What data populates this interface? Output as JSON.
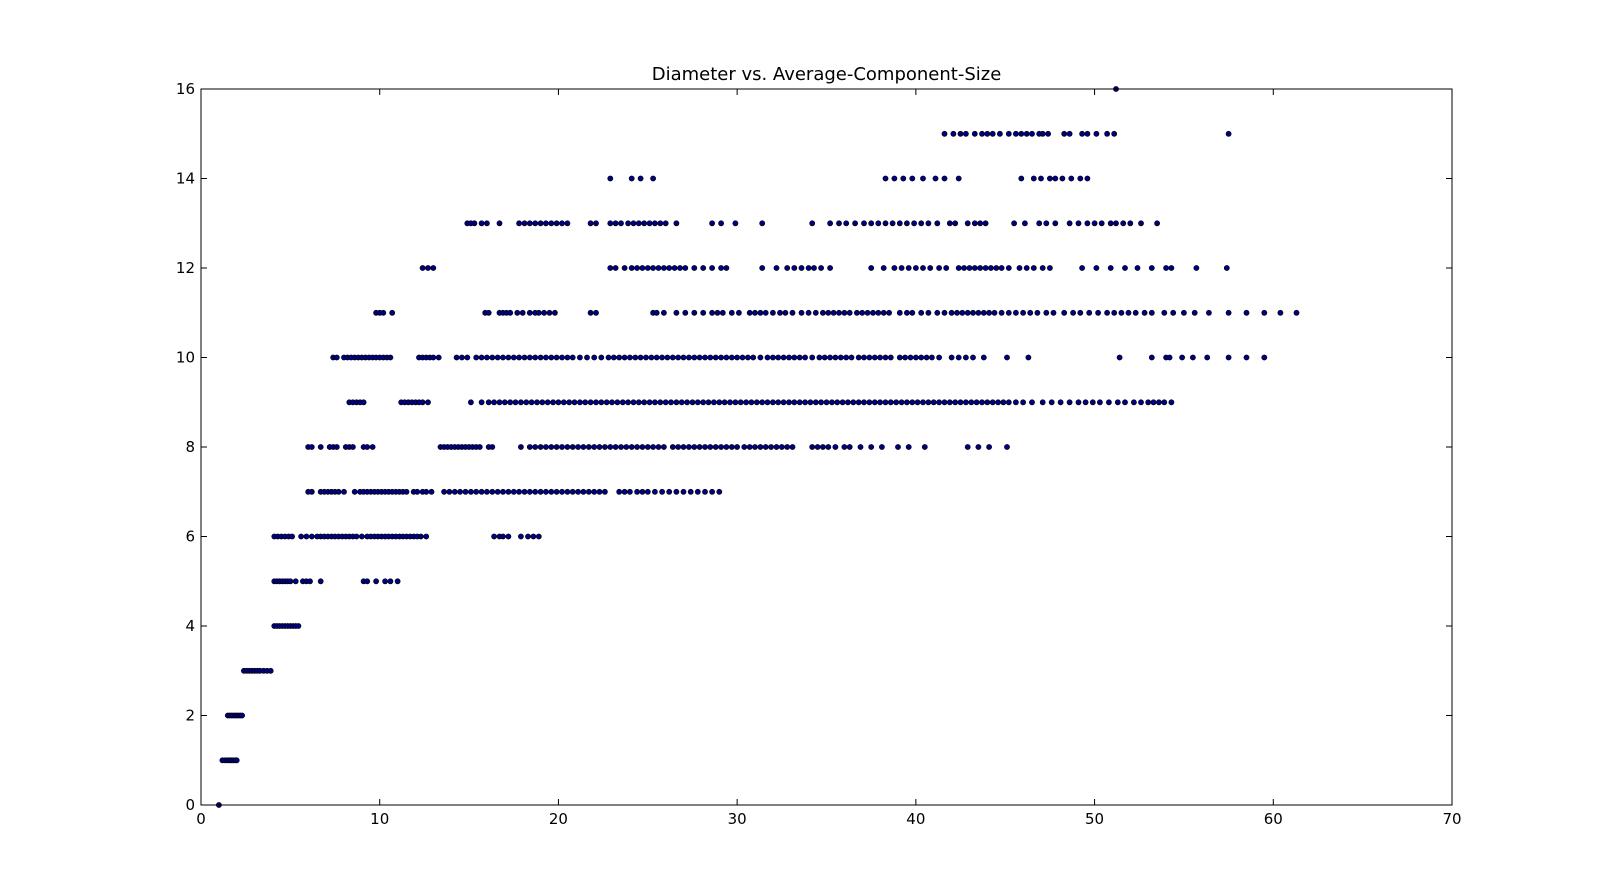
{
  "chart_data": {
    "type": "scatter",
    "title": "Diameter vs. Average-Component-Size",
    "xlabel": "",
    "ylabel": "",
    "xlim": [
      0,
      70
    ],
    "ylim": [
      0,
      16
    ],
    "xticks": [
      0,
      10,
      20,
      30,
      40,
      50,
      60,
      70
    ],
    "yticks": [
      0,
      2,
      4,
      6,
      8,
      10,
      12,
      14,
      16
    ],
    "grid": false,
    "marker_color": "#000080",
    "marker_edge": "#000000",
    "series": [
      {
        "rows": [
          {
            "y": 0,
            "x": [
              1.0
            ]
          },
          {
            "y": 1,
            "x": [
              1.2,
              1.35,
              1.5,
              1.6,
              1.7,
              1.8,
              1.9,
              2.0
            ]
          },
          {
            "y": 2,
            "x": [
              1.5,
              1.6,
              1.7,
              1.8,
              1.9,
              2.0,
              2.1,
              2.2,
              2.3
            ]
          },
          {
            "y": 3,
            "x": [
              2.4,
              2.55,
              2.7,
              2.85,
              3.0,
              3.15,
              3.3,
              3.5,
              3.7,
              3.9
            ]
          },
          {
            "y": 4,
            "x": [
              4.1,
              4.25,
              4.4,
              4.55,
              4.7,
              4.85,
              5.0,
              5.15,
              5.3,
              5.45
            ]
          },
          {
            "y": 5,
            "x": [
              4.1,
              4.25,
              4.4,
              4.55,
              4.7,
              4.85,
              5.0,
              5.3,
              5.7,
              5.9,
              6.1,
              6.7,
              9.1,
              9.3,
              9.8,
              10.3,
              10.6,
              11.0
            ]
          },
          {
            "y": 6,
            "x": [
              4.1,
              4.3,
              4.5,
              4.7,
              4.9,
              5.1,
              5.6,
              5.9,
              6.2,
              6.5,
              6.7,
              6.9,
              7.1,
              7.3,
              7.5,
              7.7,
              7.9,
              8.1,
              8.3,
              8.5,
              8.7,
              9.0,
              9.3,
              9.5,
              9.7,
              9.9,
              10.1,
              10.3,
              10.5,
              10.7,
              10.9,
              11.1,
              11.3,
              11.5,
              11.7,
              11.9,
              12.1,
              12.3,
              12.6,
              16.4,
              16.7,
              16.9,
              17.2,
              17.9,
              18.3,
              18.6,
              18.9
            ]
          },
          {
            "y": 7,
            "x": [
              6.0,
              6.2,
              6.7,
              6.9,
              7.1,
              7.3,
              7.5,
              7.7,
              8.0,
              8.6,
              8.9,
              9.1,
              9.3,
              9.5,
              9.7,
              9.9,
              10.1,
              10.3,
              10.5,
              10.7,
              10.9,
              11.1,
              11.3,
              11.5,
              11.9,
              12.1,
              12.4,
              12.6,
              12.9,
              13.6,
              13.9,
              14.2,
              14.5,
              14.8,
              15.1,
              15.4,
              15.7,
              16.0,
              16.3,
              16.6,
              16.9,
              17.2,
              17.5,
              17.8,
              18.1,
              18.4,
              18.7,
              19.0,
              19.3,
              19.6,
              19.9,
              20.2,
              20.5,
              20.8,
              21.1,
              21.4,
              21.7,
              22.0,
              22.3,
              22.6,
              23.4,
              23.7,
              24.0,
              24.4,
              24.7,
              25.0,
              25.4,
              25.8,
              26.2,
              26.6,
              27.0,
              27.4,
              27.8,
              28.2,
              28.6,
              29.0
            ]
          },
          {
            "y": 8,
            "x": [
              6.0,
              6.2,
              6.7,
              7.2,
              7.4,
              7.6,
              8.1,
              8.3,
              8.5,
              9.1,
              9.3,
              9.6,
              13.4,
              13.6,
              13.8,
              14.0,
              14.2,
              14.4,
              14.6,
              14.8,
              15.0,
              15.2,
              15.4,
              15.6,
              16.1,
              16.3,
              17.9,
              18.4,
              18.7,
              19.0,
              19.3,
              19.6,
              19.9,
              20.2,
              20.5,
              20.8,
              21.1,
              21.4,
              21.7,
              22.0,
              22.3,
              22.6,
              22.9,
              23.2,
              23.5,
              23.8,
              24.1,
              24.4,
              24.7,
              25.0,
              25.3,
              25.6,
              25.9,
              26.4,
              26.7,
              27.0,
              27.3,
              27.6,
              27.9,
              28.2,
              28.5,
              28.8,
              29.1,
              29.4,
              29.7,
              30.0,
              30.4,
              30.7,
              31.0,
              31.3,
              31.6,
              31.9,
              32.2,
              32.5,
              32.8,
              33.1,
              34.2,
              34.5,
              34.8,
              35.1,
              35.5,
              36.0,
              36.3,
              36.9,
              37.5,
              38.1,
              39.0,
              39.6,
              40.5,
              42.9,
              43.5,
              44.1,
              45.1
            ]
          },
          {
            "y": 9,
            "x": [
              8.3,
              8.5,
              8.7,
              8.9,
              9.1,
              11.2,
              11.4,
              11.6,
              11.8,
              12.0,
              12.2,
              12.4,
              12.7,
              15.1,
              15.7,
              16.1,
              16.4,
              16.7,
              17.0,
              17.3,
              17.6,
              17.9,
              18.2,
              18.5,
              18.8,
              19.1,
              19.4,
              19.7,
              20.0,
              20.3,
              20.6,
              20.9,
              21.2,
              21.5,
              21.8,
              22.1,
              22.4,
              22.7,
              23.0,
              23.3,
              23.6,
              23.9,
              24.2,
              24.5,
              24.8,
              25.1,
              25.4,
              25.7,
              26.0,
              26.3,
              26.6,
              26.9,
              27.2,
              27.5,
              27.8,
              28.1,
              28.4,
              28.7,
              29.0,
              29.3,
              29.6,
              29.9,
              30.2,
              30.5,
              30.8,
              31.1,
              31.4,
              31.7,
              32.0,
              32.3,
              32.6,
              32.9,
              33.2,
              33.5,
              33.8,
              34.1,
              34.4,
              34.7,
              35.0,
              35.3,
              35.6,
              35.9,
              36.2,
              36.5,
              36.8,
              37.1,
              37.4,
              37.7,
              38.0,
              38.3,
              38.6,
              38.9,
              39.2,
              39.5,
              39.8,
              40.1,
              40.4,
              40.7,
              41.0,
              41.3,
              41.6,
              41.9,
              42.2,
              42.5,
              42.8,
              43.1,
              43.4,
              43.7,
              44.0,
              44.3,
              44.6,
              44.9,
              45.2,
              45.6,
              46.0,
              46.5,
              47.1,
              47.6,
              48.1,
              48.6,
              49.1,
              49.5,
              49.9,
              50.3,
              50.8,
              51.3,
              51.7,
              52.2,
              52.6,
              53.0,
              53.3,
              53.6,
              53.9,
              54.3
            ]
          },
          {
            "y": 10,
            "x": [
              7.4,
              7.6,
              8.0,
              8.2,
              8.4,
              8.6,
              8.8,
              9.0,
              9.2,
              9.4,
              9.6,
              9.8,
              10.0,
              10.2,
              10.4,
              10.6,
              12.2,
              12.4,
              12.6,
              12.8,
              13.0,
              13.3,
              14.3,
              14.6,
              14.9,
              15.4,
              15.7,
              16.0,
              16.3,
              16.6,
              16.9,
              17.2,
              17.5,
              17.8,
              18.1,
              18.4,
              18.7,
              19.0,
              19.3,
              19.6,
              19.9,
              20.2,
              20.5,
              20.8,
              21.2,
              21.6,
              22.0,
              22.4,
              22.8,
              23.1,
              23.4,
              23.7,
              24.0,
              24.3,
              24.6,
              24.9,
              25.2,
              25.5,
              25.8,
              26.1,
              26.4,
              26.7,
              27.0,
              27.3,
              27.6,
              27.9,
              28.2,
              28.5,
              28.8,
              29.1,
              29.4,
              29.7,
              30.0,
              30.3,
              30.6,
              30.9,
              31.3,
              31.7,
              32.0,
              32.3,
              32.6,
              32.9,
              33.2,
              33.5,
              33.8,
              34.2,
              34.6,
              34.9,
              35.2,
              35.5,
              35.8,
              36.1,
              36.4,
              36.8,
              37.1,
              37.4,
              37.7,
              38.0,
              38.3,
              38.6,
              39.1,
              39.4,
              39.7,
              40.0,
              40.3,
              40.6,
              40.9,
              41.3,
              42.0,
              42.4,
              42.8,
              43.2,
              43.8,
              45.1,
              46.3,
              51.4,
              53.2,
              54.0,
              54.2,
              54.9,
              55.5,
              56.3,
              57.5,
              58.5,
              59.5
            ]
          },
          {
            "y": 11,
            "x": [
              9.8,
              10.0,
              10.2,
              10.7,
              15.9,
              16.1,
              16.7,
              16.9,
              17.1,
              17.3,
              17.7,
              18.0,
              18.4,
              18.7,
              18.9,
              19.2,
              19.5,
              19.8,
              21.8,
              22.1,
              25.3,
              25.5,
              25.9,
              26.6,
              27.1,
              27.6,
              28.1,
              28.6,
              28.9,
              29.2,
              29.7,
              30.1,
              30.7,
              31.0,
              31.3,
              31.6,
              32.0,
              32.4,
              32.7,
              33.1,
              33.6,
              34.0,
              34.4,
              34.8,
              35.1,
              35.4,
              35.7,
              36.0,
              36.3,
              36.7,
              37.0,
              37.3,
              37.6,
              37.9,
              38.2,
              38.5,
              39.1,
              39.5,
              39.8,
              40.3,
              40.7,
              41.2,
              41.6,
              42.0,
              42.3,
              42.6,
              42.9,
              43.2,
              43.5,
              43.8,
              44.1,
              44.4,
              44.8,
              45.2,
              45.6,
              46.0,
              46.4,
              46.8,
              47.3,
              47.7,
              48.3,
              48.8,
              49.2,
              49.7,
              50.2,
              50.7,
              51.1,
              51.5,
              51.9,
              52.3,
              52.8,
              53.2,
              53.9,
              54.4,
              55.0,
              55.6,
              56.4,
              57.5,
              58.5,
              59.5,
              60.4,
              61.3
            ]
          },
          {
            "y": 12,
            "x": [
              12.4,
              12.7,
              13.0,
              22.9,
              23.2,
              23.7,
              24.1,
              24.4,
              24.7,
              25.0,
              25.3,
              25.6,
              25.9,
              26.2,
              26.5,
              26.8,
              27.1,
              27.6,
              28.1,
              28.6,
              29.1,
              29.4,
              31.4,
              32.2,
              32.8,
              33.2,
              33.6,
              34.0,
              34.3,
              34.7,
              35.2,
              37.5,
              38.2,
              38.8,
              39.2,
              39.6,
              40.0,
              40.4,
              40.8,
              41.3,
              41.7,
              42.4,
              42.7,
              43.0,
              43.3,
              43.6,
              43.9,
              44.2,
              44.5,
              44.8,
              45.2,
              45.8,
              46.2,
              46.6,
              47.1,
              47.5,
              49.3,
              50.1,
              50.9,
              51.7,
              52.4,
              53.2,
              54.0,
              54.3,
              55.7,
              57.4
            ]
          },
          {
            "y": 13,
            "x": [
              14.9,
              15.1,
              15.3,
              15.7,
              16.0,
              16.7,
              17.8,
              18.1,
              18.4,
              18.7,
              19.0,
              19.3,
              19.6,
              19.9,
              20.2,
              20.5,
              21.8,
              22.1,
              22.9,
              23.2,
              23.5,
              23.9,
              24.2,
              24.5,
              24.8,
              25.1,
              25.4,
              25.7,
              26.0,
              26.6,
              28.6,
              29.1,
              29.9,
              31.4,
              34.2,
              35.2,
              35.7,
              36.1,
              36.6,
              37.1,
              37.5,
              37.9,
              38.3,
              38.7,
              39.1,
              39.5,
              39.9,
              40.3,
              40.7,
              41.2,
              41.9,
              42.2,
              42.9,
              43.3,
              43.6,
              43.9,
              45.5,
              46.1,
              46.9,
              47.3,
              47.8,
              48.6,
              49.1,
              49.6,
              50.0,
              50.4,
              50.9,
              51.2,
              51.6,
              52.0,
              52.6,
              53.5
            ]
          },
          {
            "y": 14,
            "x": [
              22.9,
              24.1,
              24.6,
              25.3,
              38.3,
              38.8,
              39.3,
              39.8,
              40.4,
              41.1,
              41.6,
              42.4,
              45.9,
              46.6,
              47.0,
              47.5,
              47.8,
              48.2,
              48.7,
              49.2,
              49.6
            ]
          },
          {
            "y": 15,
            "x": [
              41.6,
              42.1,
              42.5,
              42.8,
              43.3,
              43.7,
              44.0,
              44.3,
              44.7,
              45.2,
              45.6,
              45.9,
              46.2,
              46.5,
              46.9,
              47.1,
              47.4,
              48.3,
              48.6,
              49.3,
              49.6,
              50.1,
              50.7,
              51.1,
              57.5
            ]
          },
          {
            "y": 16,
            "x": [
              51.2
            ]
          }
        ]
      }
    ]
  }
}
